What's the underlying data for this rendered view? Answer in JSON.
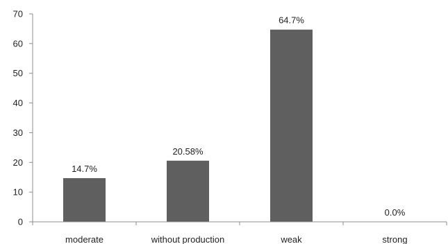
{
  "chart_data": {
    "type": "bar",
    "categories": [
      "moderate",
      "without production",
      "weak",
      "strong"
    ],
    "values": [
      14.7,
      20.58,
      64.7,
      0.0
    ],
    "data_labels": [
      "14.7%",
      "20.58%",
      "64.7%",
      "0.0%"
    ],
    "title": "",
    "xlabel": "",
    "ylabel": "",
    "ylim": [
      0,
      70
    ],
    "yticks": [
      0,
      10,
      20,
      30,
      40,
      50,
      60,
      70
    ],
    "grid": false,
    "legend": "none",
    "bar_color": "#5f5f5f",
    "axis_color": "#8c8c8c",
    "text_color": "#222222"
  }
}
